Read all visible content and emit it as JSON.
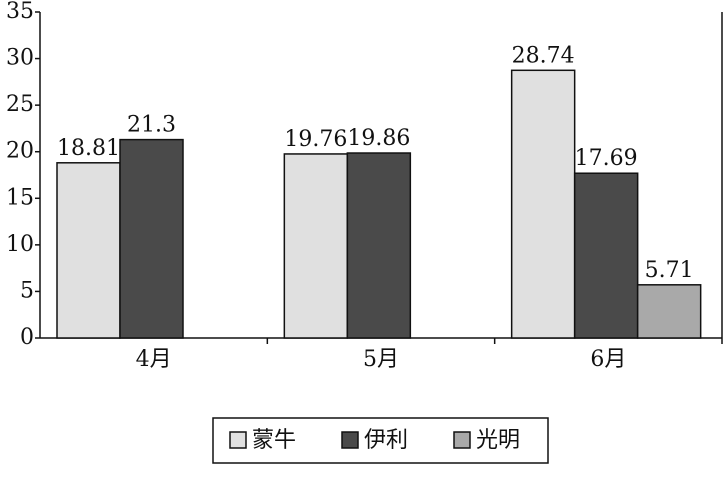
{
  "chart_data": {
    "type": "bar",
    "categories": [
      "4月",
      "5月",
      "6月"
    ],
    "series": [
      {
        "name": "蒙牛",
        "color": "#e0e0e0",
        "values": [
          18.81,
          19.76,
          28.74
        ]
      },
      {
        "name": "伊利",
        "color": "#4a4a4a",
        "values": [
          21.3,
          19.86,
          17.69
        ]
      },
      {
        "name": "光明",
        "color": "#a9a9a9",
        "values": [
          null,
          null,
          5.71
        ]
      }
    ],
    "ylim": [
      0,
      35
    ],
    "yticks": [
      0,
      5,
      10,
      15,
      20,
      25,
      30,
      35
    ],
    "grid": false,
    "legend": "bottom"
  }
}
